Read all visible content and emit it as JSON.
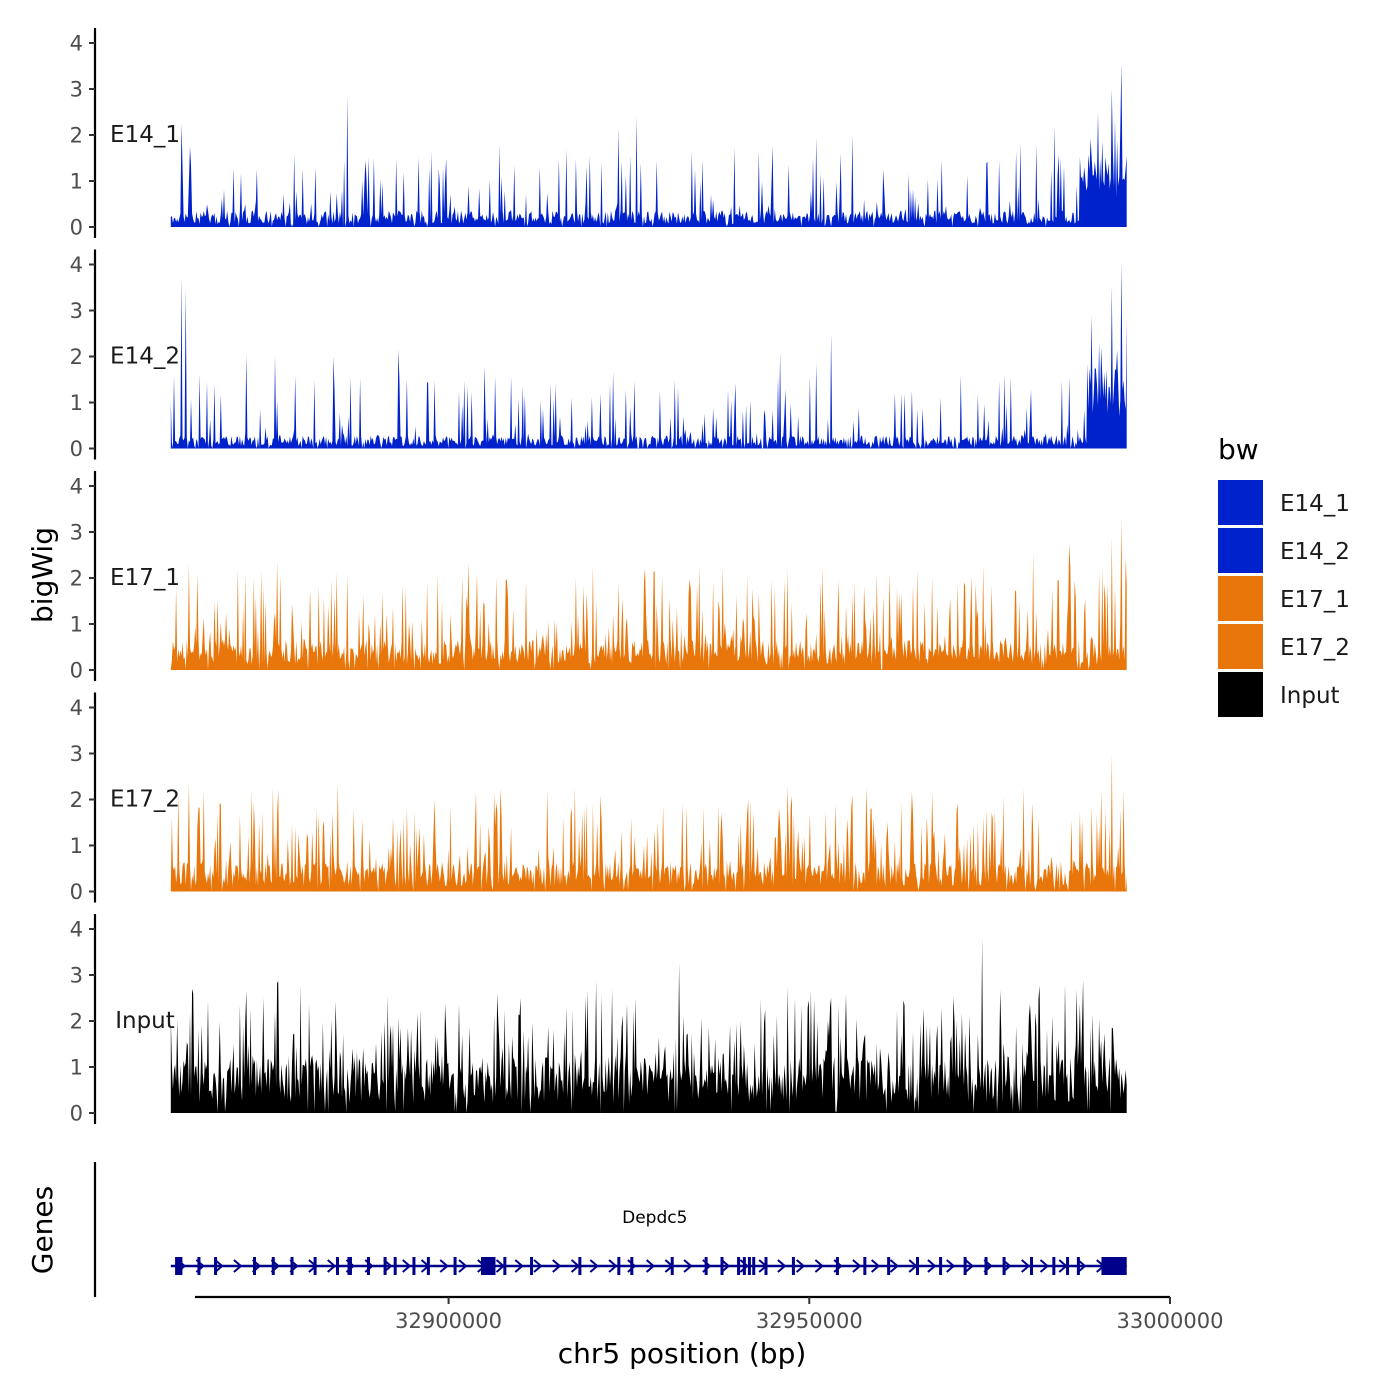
{
  "chart_data": {
    "type": "area",
    "title": "",
    "ylabel": "bigWig",
    "xlabel": "chr5 position (bp)",
    "genes_label": "Genes",
    "xlim": [
      32860000,
      33000000
    ],
    "data_range": [
      32861500,
      32994000
    ],
    "x_ticks": [
      {
        "value": 32900000,
        "label": "32900000"
      },
      {
        "value": 32950000,
        "label": "32950000"
      },
      {
        "value": 33000000,
        "label": "33000000"
      }
    ],
    "ylim": [
      0,
      4.3
    ],
    "y_ticks": [
      {
        "value": 0,
        "label": "0"
      },
      {
        "value": 1,
        "label": "1"
      },
      {
        "value": 2,
        "label": "2"
      },
      {
        "value": 3,
        "label": "3"
      },
      {
        "value": 4,
        "label": "4"
      }
    ],
    "tracks": [
      {
        "name": "E14_1",
        "color": "#0022CC",
        "seed": 11,
        "baseline": 0.25,
        "spike_rate": 0.16,
        "spike_max": 1.6,
        "peaks": [
          {
            "x": 32863000,
            "y": 2.25
          },
          {
            "x": 32864200,
            "y": 1.75
          },
          {
            "x": 32886000,
            "y": 2.85
          },
          {
            "x": 32907000,
            "y": 1.8
          },
          {
            "x": 32919500,
            "y": 1.55
          },
          {
            "x": 32923500,
            "y": 2.15
          },
          {
            "x": 32926000,
            "y": 2.4
          },
          {
            "x": 32943000,
            "y": 1.65
          },
          {
            "x": 32951000,
            "y": 1.95
          },
          {
            "x": 32956000,
            "y": 2.0
          },
          {
            "x": 32984000,
            "y": 2.2
          },
          {
            "x": 32990000,
            "y": 2.5
          },
          {
            "x": 32992000,
            "y": 3.0
          },
          {
            "x": 32993300,
            "y": 3.55
          }
        ],
        "elevated": [
          {
            "from": 32987500,
            "to": 32994000,
            "level": 0.9
          }
        ]
      },
      {
        "name": "E14_2",
        "color": "#0022CC",
        "seed": 23,
        "baseline": 0.2,
        "spike_rate": 0.15,
        "spike_max": 1.5,
        "peaks": [
          {
            "x": 32863000,
            "y": 3.75
          },
          {
            "x": 32863600,
            "y": 3.45
          },
          {
            "x": 32872000,
            "y": 2.05
          },
          {
            "x": 32876000,
            "y": 2.0
          },
          {
            "x": 32884000,
            "y": 2.0
          },
          {
            "x": 32893000,
            "y": 2.15
          },
          {
            "x": 32905000,
            "y": 1.8
          },
          {
            "x": 32946000,
            "y": 2.1
          },
          {
            "x": 32953000,
            "y": 2.5
          },
          {
            "x": 32951000,
            "y": 1.85
          },
          {
            "x": 32977000,
            "y": 1.6
          },
          {
            "x": 32990500,
            "y": 2.2
          },
          {
            "x": 32992000,
            "y": 3.55
          },
          {
            "x": 32993300,
            "y": 4.05
          }
        ],
        "elevated": [
          {
            "from": 32988500,
            "to": 32994000,
            "level": 1.1
          }
        ]
      },
      {
        "name": "E17_1",
        "color": "#E8760A",
        "seed": 37,
        "baseline": 0.45,
        "spike_rate": 0.3,
        "spike_max": 1.9,
        "peaks": [
          {
            "x": 32864000,
            "y": 2.3
          },
          {
            "x": 32904000,
            "y": 2.1
          },
          {
            "x": 32920000,
            "y": 2.2
          },
          {
            "x": 32938000,
            "y": 2.25
          },
          {
            "x": 32947000,
            "y": 2.2
          },
          {
            "x": 32965000,
            "y": 2.2
          },
          {
            "x": 32981000,
            "y": 2.55
          },
          {
            "x": 32986000,
            "y": 2.75
          },
          {
            "x": 32992000,
            "y": 2.9
          },
          {
            "x": 32993300,
            "y": 3.3
          }
        ],
        "elevated": []
      },
      {
        "name": "E17_2",
        "color": "#E8760A",
        "seed": 53,
        "baseline": 0.45,
        "spike_rate": 0.3,
        "spike_max": 1.8,
        "peaks": [
          {
            "x": 32862500,
            "y": 2.1
          },
          {
            "x": 32864000,
            "y": 2.35
          },
          {
            "x": 32866000,
            "y": 2.2
          },
          {
            "x": 32921000,
            "y": 2.1
          },
          {
            "x": 32947000,
            "y": 2.3
          },
          {
            "x": 32967000,
            "y": 2.15
          },
          {
            "x": 32990500,
            "y": 2.2
          },
          {
            "x": 32992000,
            "y": 3.0
          },
          {
            "x": 32993500,
            "y": 2.2
          }
        ],
        "elevated": []
      },
      {
        "name": "Input",
        "color": "#000000",
        "seed": 71,
        "baseline": 0.85,
        "spike_rate": 0.35,
        "spike_max": 1.8,
        "peaks": [
          {
            "x": 32864500,
            "y": 2.7
          },
          {
            "x": 32872000,
            "y": 2.65
          },
          {
            "x": 32910000,
            "y": 2.5
          },
          {
            "x": 32932000,
            "y": 3.25
          },
          {
            "x": 32947000,
            "y": 2.75
          },
          {
            "x": 32953000,
            "y": 2.5
          },
          {
            "x": 32963000,
            "y": 2.45
          },
          {
            "x": 32974000,
            "y": 3.8
          },
          {
            "x": 32988000,
            "y": 2.9
          },
          {
            "x": 32992000,
            "y": 1.85
          }
        ],
        "elevated": []
      }
    ],
    "gene": {
      "name": "Depdc5",
      "color": "#00008B",
      "start": 32861500,
      "end": 32994000,
      "strand": "+",
      "exons": [
        32862300,
        32862600,
        32862900,
        32865400,
        32867700,
        32873100,
        32875700,
        32878300,
        32881500,
        32884600,
        32886200,
        32886400,
        32888900,
        32891200,
        32892600,
        32895200,
        32897200,
        32900900,
        32907800,
        32911500,
        32918200,
        32923600,
        32925400,
        32931000,
        32935700,
        32937900,
        32940200,
        32941000,
        32941700,
        32942300,
        32944000,
        32947800,
        32953900,
        32957700,
        32961000,
        32965000,
        32968200,
        32971600,
        32974500,
        32977000,
        32980800,
        32983900,
        32985800,
        32987300
      ],
      "big_exons": [
        {
          "from": 32904500,
          "to": 32906500
        },
        {
          "from": 32990500,
          "to": 32994000
        }
      ]
    },
    "legend": {
      "title": "bw",
      "position": "right",
      "entries": [
        {
          "label": "E14_1",
          "color": "#0022CC"
        },
        {
          "label": "E14_2",
          "color": "#0022CC"
        },
        {
          "label": "E17_1",
          "color": "#E8760A"
        },
        {
          "label": "E17_2",
          "color": "#E8760A"
        },
        {
          "label": "Input",
          "color": "#000000"
        }
      ]
    }
  }
}
